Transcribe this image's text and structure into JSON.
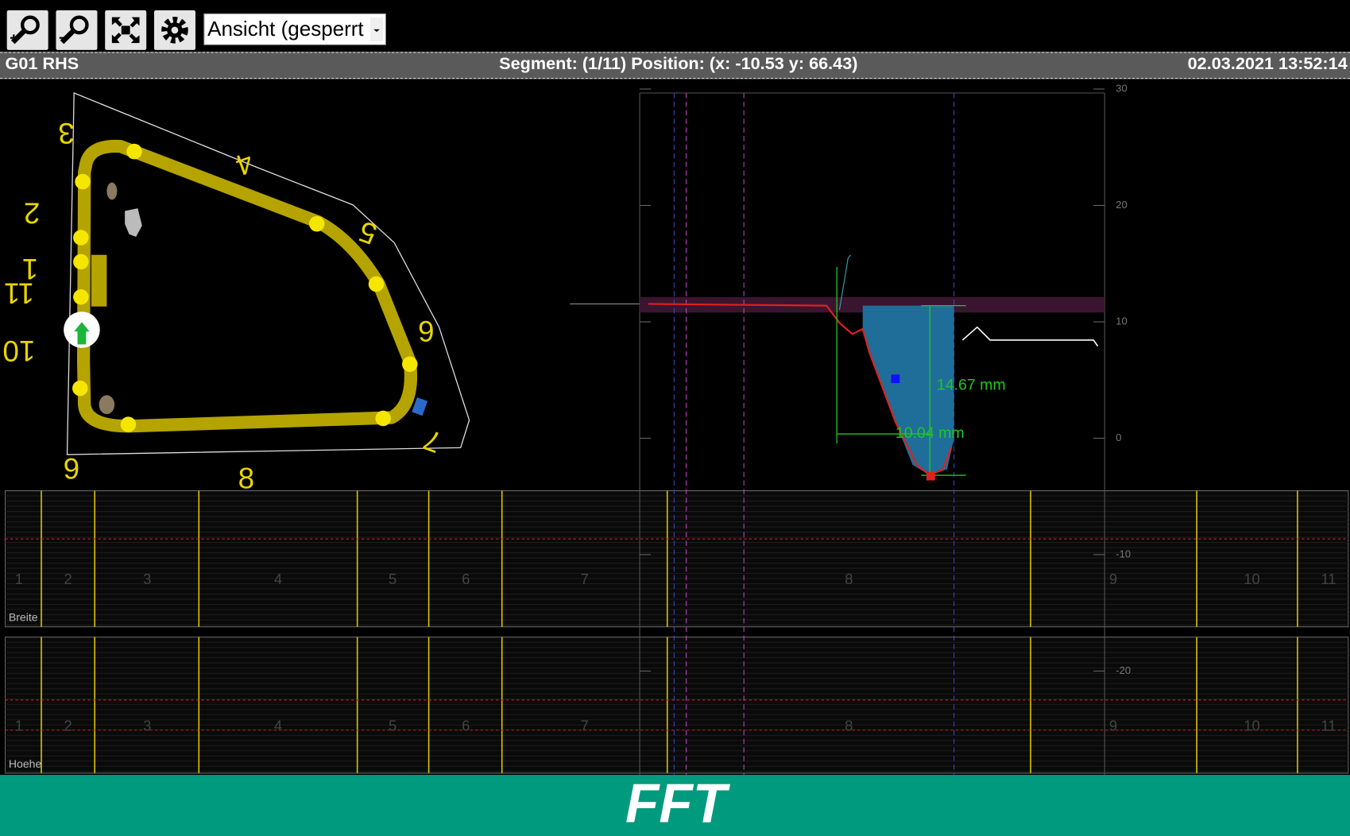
{
  "toolbar": {
    "dropdown": "Ansicht (gesperrt"
  },
  "header": {
    "left": "G01 RHS",
    "center": "Segment: (1/11) Position: (x: -10.53 y: 66.43)",
    "right": "02.03.2021 13:52:14"
  },
  "contour": {
    "labels": [
      "3",
      "4",
      "2",
      "5",
      "1",
      "11",
      "10",
      "6",
      "9",
      "8",
      "7"
    ]
  },
  "profile": {
    "yticks": [
      30,
      20,
      10,
      0,
      -10,
      -20
    ],
    "measurements": [
      "14.67 mm",
      "10.04 mm"
    ]
  },
  "strips": [
    {
      "label": "Breite",
      "segments": [
        1,
        2,
        3,
        4,
        5,
        6,
        7,
        8,
        9,
        10,
        11
      ]
    },
    {
      "label": "Hoehe",
      "segments": [
        1,
        2,
        3,
        4,
        5,
        6,
        7,
        8,
        9,
        10,
        11
      ]
    }
  ],
  "logo": "FFT"
}
